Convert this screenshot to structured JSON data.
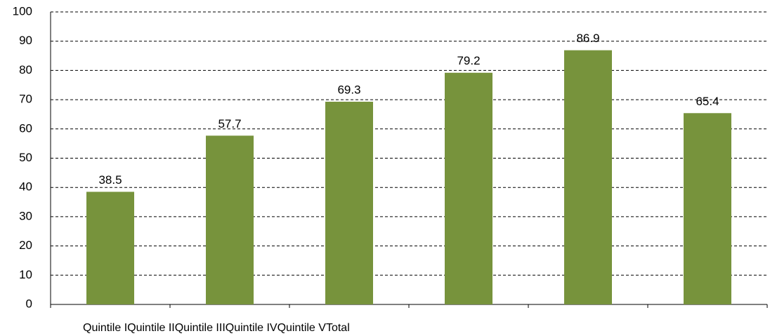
{
  "chart_data": {
    "type": "bar",
    "categories": [
      "Quintile I",
      "Quintile II",
      "Quintile III",
      "Quintile IV",
      "Quintile V",
      "Total"
    ],
    "values": [
      38.5,
      57.7,
      69.3,
      79.2,
      86.9,
      65.4
    ],
    "color": "#77933c",
    "ylim": [
      0,
      100
    ],
    "yticks": [
      0,
      10,
      20,
      30,
      40,
      50,
      60,
      70,
      80,
      90,
      100
    ],
    "grid": true
  }
}
